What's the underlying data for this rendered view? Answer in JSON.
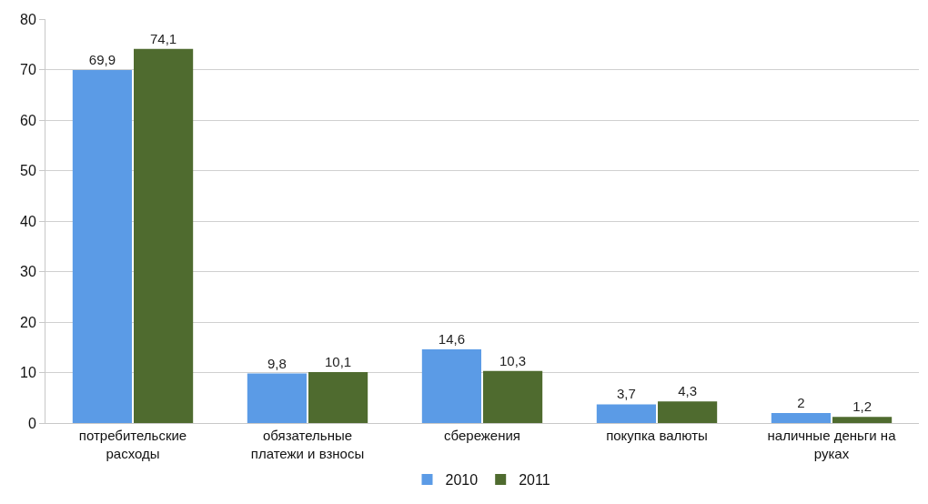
{
  "chart_data": {
    "type": "bar",
    "categories": [
      "потребительские\nрасходы",
      "обязательные\nплатежи и взносы",
      "сбережения",
      "покупка валюты",
      "наличные деньги на\nруках"
    ],
    "series": [
      {
        "name": "2010",
        "color": "#5b9be6",
        "values": [
          69.9,
          9.8,
          14.6,
          3.7,
          2
        ],
        "value_labels": [
          "69,9",
          "9,8",
          "14,6",
          "3,7",
          "2"
        ]
      },
      {
        "name": "2011",
        "color": "#4f6b2f",
        "values": [
          74.1,
          10.1,
          10.3,
          4.3,
          1.2
        ],
        "value_labels": [
          "74,1",
          "10,1",
          "10,3",
          "4,3",
          "1,2"
        ]
      }
    ],
    "ylim": [
      0,
      80
    ],
    "yticks": [
      0,
      10,
      20,
      30,
      40,
      50,
      60,
      70,
      80
    ],
    "grid": "y",
    "legend": "bottom"
  }
}
